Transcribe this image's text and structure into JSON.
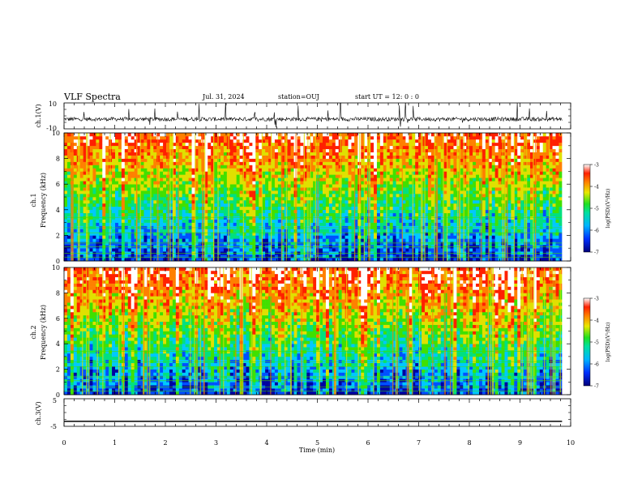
{
  "header": {
    "title": "VLF Spectra",
    "date": "Jul. 31, 2024",
    "station": "station=OUJ",
    "start": "start UT = 12: 0 : 0"
  },
  "chart_data": [
    {
      "type": "line",
      "panel": "ch1-waveform",
      "ylabel": "ch.1(V)",
      "ylim": [
        -10,
        10
      ],
      "yticklabels": [
        "10",
        "-10"
      ],
      "baseline": -2.5,
      "description_values": "noisy signal around -2.5 V with spikes up to ~10 V"
    },
    {
      "type": "heatmap",
      "panel": "ch1-spectrogram",
      "ylabel": "ch.1\nFrequency (kHz)",
      "ylim": [
        0,
        10
      ],
      "yticks": [
        0,
        2,
        4,
        6,
        8,
        10
      ],
      "colorbar": {
        "label": "log(PSD)(V²/Hz)",
        "range": [
          -7,
          -3
        ],
        "ticks": [
          -3,
          -4,
          -5,
          -6,
          -7
        ]
      }
    },
    {
      "type": "heatmap",
      "panel": "ch2-spectrogram",
      "ylabel": "ch.2\nFrequency (kHz)",
      "ylim": [
        0,
        10
      ],
      "yticks": [
        0,
        2,
        4,
        6,
        8,
        10
      ],
      "colorbar": {
        "label": "log(PSD)(V²/Hz)",
        "range": [
          -7,
          -3
        ],
        "ticks": [
          -3,
          -4,
          -5,
          -6,
          -7
        ]
      }
    },
    {
      "type": "line",
      "panel": "ch3-waveform",
      "ylabel": "ch.3(V)",
      "ylim": [
        -5,
        5
      ],
      "yticklabels": [
        "5",
        "-5"
      ],
      "baseline": -3.2
    }
  ],
  "xaxis": {
    "label": "Time (min)",
    "range": [
      0,
      10
    ],
    "ticks": [
      "0",
      "1",
      "2",
      "3",
      "4",
      "5",
      "6",
      "7",
      "8",
      "9",
      "10"
    ],
    "data_end": 9.83
  },
  "colors": {
    "scale": [
      "#0000a0",
      "#0050ff",
      "#00c8ff",
      "#00e080",
      "#40e000",
      "#e0e000",
      "#ff8000",
      "#ff2000",
      "#ffffff"
    ],
    "waveform": "#000000"
  },
  "labels": {
    "ch1_label": "ch.1",
    "ch2_label": "ch.2",
    "freq_label": "Frequency (kHz)",
    "cbar_label": "log(PSD)(V²/Hz)",
    "cbar_ticks": [
      "-3",
      "-4",
      "-5",
      "-6",
      "-7"
    ],
    "ch1v": "ch.1(V)",
    "ch3v": "ch.3(V)",
    "w1_top": "10",
    "w1_bot": "-10",
    "w3_top": "5",
    "w3_bot": "-5",
    "f_ticks": [
      "0",
      "2",
      "4",
      "6",
      "8",
      "10"
    ]
  }
}
